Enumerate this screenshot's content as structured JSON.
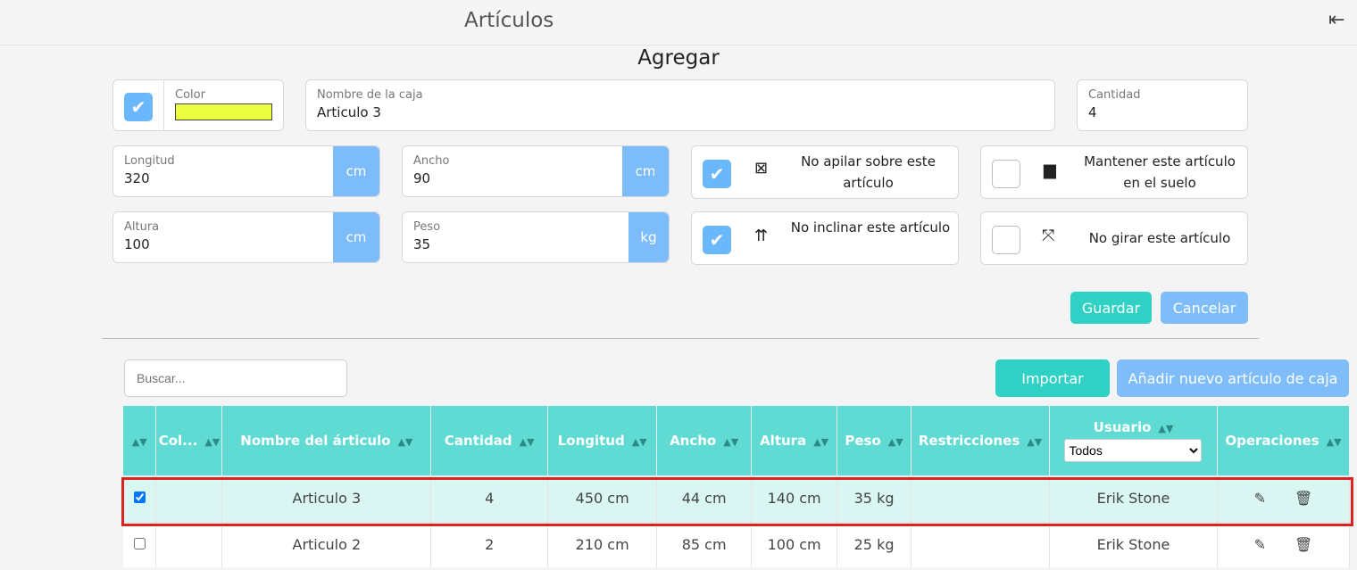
{
  "header": {
    "title": "Artículos",
    "back_icon": "arrow-left-bar-icon"
  },
  "form": {
    "heading": "Agregar",
    "color_label": "Color",
    "color_value": "#eaff3f",
    "color_checked": true,
    "name_label": "Nombre de la caja",
    "name_value": "Articulo 3",
    "qty_label": "Cantidad",
    "qty_value": "4",
    "length_label": "Longitud",
    "length_value": "320",
    "length_unit": "cm",
    "width_label": "Ancho",
    "width_value": "90",
    "width_unit": "cm",
    "height_label": "Altura",
    "height_value": "100",
    "height_unit": "cm",
    "weight_label": "Peso",
    "weight_value": "35",
    "weight_unit": "kg",
    "restrictions": [
      {
        "label": "No apilar sobre este artículo",
        "checked": true,
        "icon": "no-stack-icon"
      },
      {
        "label": "Mantener este artículo en el suelo",
        "checked": false,
        "icon": "keep-on-floor-icon"
      },
      {
        "label": "No inclinar este artículo",
        "checked": true,
        "icon": "this-way-up-icon"
      },
      {
        "label": "No girar este artículo",
        "checked": false,
        "icon": "no-rotate-icon"
      }
    ],
    "save": "Guardar",
    "cancel": "Cancelar"
  },
  "toolbar": {
    "search_placeholder": "Buscar...",
    "import": "Importar",
    "add_new": "Añadir nuevo artículo de caja"
  },
  "table": {
    "headers": [
      "",
      "Col...",
      "Nombre del árticulo",
      "Cantidad",
      "Longitud",
      "Ancho",
      "Altura",
      "Peso",
      "Restricciones",
      "Usuario",
      "Operaciones"
    ],
    "user_filter": "Todos",
    "rows": [
      {
        "checked": true,
        "name": "Articulo 3",
        "qty": "4",
        "length": "450 cm",
        "width": "44 cm",
        "height": "140 cm",
        "weight": "35 kg",
        "restrictions": "",
        "user": "Erik Stone"
      },
      {
        "checked": false,
        "name": "Articulo 2",
        "qty": "2",
        "length": "210 cm",
        "width": "85 cm",
        "height": "100 cm",
        "weight": "25 kg",
        "restrictions": "",
        "user": "Erik Stone"
      }
    ]
  },
  "colors": {
    "teal": "#5fdbd3",
    "accent_blue": "#7cbcfb",
    "highlight": "#d22222"
  }
}
